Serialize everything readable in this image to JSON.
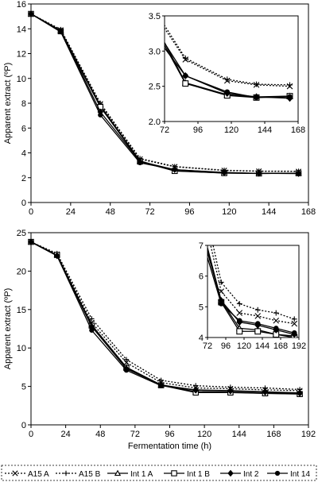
{
  "legend_position": "bottom",
  "legend": [
    {
      "name": "A15 A",
      "marker": "x",
      "dash": "dotted"
    },
    {
      "name": "A15 B",
      "marker": "plus",
      "dash": "dotted"
    },
    {
      "name": "Int 1 A",
      "marker": "triangle-open",
      "dash": "solid"
    },
    {
      "name": "Int 1 B",
      "marker": "square-open",
      "dash": "solid"
    },
    {
      "name": "Int 2",
      "marker": "diamond-filled",
      "dash": "solid"
    },
    {
      "name": "Int 14",
      "marker": "circle-filled",
      "dash": "solid"
    }
  ],
  "chart_data": [
    {
      "type": "line",
      "title": "",
      "xlabel": "",
      "ylabel": "Apparent extract (ºP)",
      "xlim": [
        0,
        168
      ],
      "ylim": [
        0,
        16
      ],
      "xticks": [
        "0",
        "24",
        "48",
        "72",
        "96",
        "120",
        "144",
        "168"
      ],
      "yticks": [
        "0",
        "2",
        "4",
        "6",
        "8",
        "10",
        "12",
        "14",
        "16"
      ],
      "grid": false,
      "series": [
        {
          "name": "A15 A",
          "x": [
            0,
            18,
            42,
            66,
            87,
            117,
            138,
            162
          ],
          "y": [
            15.2,
            13.9,
            7.95,
            3.5,
            2.88,
            2.58,
            2.52,
            2.5
          ]
        },
        {
          "name": "A15 B",
          "x": [
            0,
            18,
            42,
            66,
            87,
            117,
            138,
            162
          ],
          "y": [
            15.2,
            13.95,
            8.0,
            3.55,
            2.9,
            2.6,
            2.53,
            2.52
          ]
        },
        {
          "name": "Int 1 A",
          "x": [
            0,
            18,
            42,
            66,
            87,
            117,
            138,
            162
          ],
          "y": [
            15.2,
            13.85,
            7.8,
            3.35,
            2.55,
            2.38,
            2.35,
            2.36
          ]
        },
        {
          "name": "Int 1 B",
          "x": [
            0,
            18,
            42,
            66,
            87,
            117,
            138,
            162
          ],
          "y": [
            15.2,
            13.8,
            7.7,
            3.3,
            2.54,
            2.37,
            2.34,
            2.36
          ]
        },
        {
          "name": "Int 2",
          "x": [
            0,
            18,
            42,
            66,
            87,
            117,
            138,
            162
          ],
          "y": [
            15.2,
            13.85,
            7.3,
            3.3,
            2.65,
            2.4,
            2.35,
            2.33
          ]
        },
        {
          "name": "Int 14",
          "x": [
            0,
            18,
            42,
            66,
            87,
            117,
            138,
            162
          ],
          "y": [
            15.2,
            13.75,
            7.05,
            3.2,
            2.65,
            2.42,
            2.34,
            2.35
          ]
        }
      ],
      "inset": {
        "xlim": [
          72,
          168
        ],
        "ylim": [
          2.0,
          3.5
        ],
        "xticks": [
          "72",
          "96",
          "120",
          "144",
          "168"
        ],
        "yticks": [
          "2.0",
          "2.5",
          "3.0",
          "3.5"
        ]
      }
    },
    {
      "type": "line",
      "title": "",
      "xlabel": "Fermentation time (h)",
      "ylabel": "Apparent extract (ºP)",
      "xlim": [
        0,
        192
      ],
      "ylim": [
        0,
        25
      ],
      "xticks": [
        "0",
        "24",
        "48",
        "72",
        "96",
        "120",
        "144",
        "168",
        "192"
      ],
      "yticks": [
        "0",
        "5",
        "10",
        "15",
        "20",
        "25"
      ],
      "grid": false,
      "series": [
        {
          "name": "A15 A",
          "x": [
            0,
            18,
            42,
            66,
            90,
            114,
            138,
            162,
            186
          ],
          "y": [
            23.8,
            22.2,
            13.3,
            8.1,
            5.5,
            4.8,
            4.7,
            4.55,
            4.45
          ]
        },
        {
          "name": "A15 B",
          "x": [
            0,
            18,
            42,
            66,
            90,
            114,
            138,
            162,
            186
          ],
          "y": [
            23.8,
            22.3,
            13.8,
            8.5,
            5.8,
            5.1,
            4.9,
            4.8,
            4.6
          ]
        },
        {
          "name": "Int 1 A",
          "x": [
            0,
            18,
            42,
            66,
            90,
            114,
            138,
            162,
            186
          ],
          "y": [
            23.8,
            22.1,
            13.0,
            7.5,
            5.2,
            4.3,
            4.25,
            4.1,
            4.05
          ]
        },
        {
          "name": "Int 1 B",
          "x": [
            0,
            18,
            42,
            66,
            90,
            114,
            138,
            162,
            186
          ],
          "y": [
            23.8,
            22.1,
            12.9,
            7.4,
            5.15,
            4.2,
            4.2,
            4.1,
            4.0
          ]
        },
        {
          "name": "Int 2",
          "x": [
            0,
            18,
            42,
            66,
            90,
            114,
            138,
            162,
            186
          ],
          "y": [
            23.8,
            22.0,
            12.8,
            7.3,
            5.2,
            4.5,
            4.4,
            4.25,
            4.1
          ]
        },
        {
          "name": "Int 14",
          "x": [
            0,
            18,
            42,
            66,
            90,
            114,
            138,
            162,
            186
          ],
          "y": [
            23.8,
            22.0,
            12.3,
            7.1,
            5.1,
            4.55,
            4.45,
            4.3,
            4.15
          ]
        }
      ],
      "inset": {
        "xlim": [
          72,
          192
        ],
        "ylim": [
          4,
          7
        ],
        "xticks": [
          "72",
          "96",
          "120",
          "144",
          "168",
          "192"
        ],
        "yticks": [
          "4",
          "5",
          "6",
          "7"
        ]
      }
    }
  ]
}
